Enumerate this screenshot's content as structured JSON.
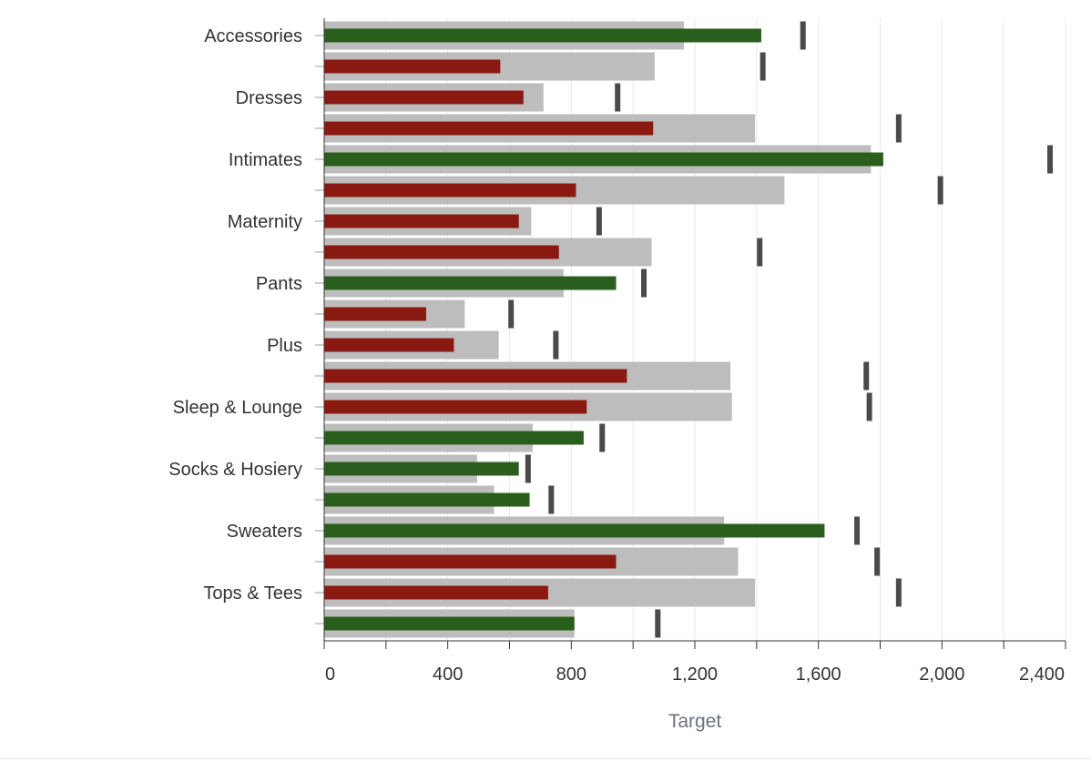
{
  "chart_data": {
    "type": "bar",
    "subtype": "bullet",
    "orientation": "horizontal",
    "title": "",
    "xlabel": "Target",
    "ylabel": "",
    "xlim": [
      0,
      2400
    ],
    "xticks": [
      0,
      400,
      800,
      1200,
      1600,
      2000,
      2400
    ],
    "xtick_labels": [
      "0",
      "400",
      "800",
      "1,200",
      "1,600",
      "2,000",
      "2,400"
    ],
    "category_labels": [
      "Accessories",
      "Dresses",
      "Intimates",
      "Maternity",
      "Pants",
      "Plus",
      "Sleep & Lounge",
      "Socks & Hosiery",
      "Sweaters",
      "Tops & Tees"
    ],
    "colors": {
      "background_bar": "#bdbdbd",
      "above_target": "#2a5e1c",
      "below_target": "#8a1a11",
      "marker": "#4a4a4a",
      "grid": "#e9e9e9",
      "axis": "#333333"
    },
    "rows": [
      {
        "label": "Accessories",
        "bg": 1165,
        "value": 1415,
        "status": "above",
        "marker": 1550
      },
      {
        "label": "",
        "bg": 1070,
        "value": 570,
        "status": "below",
        "marker": 1420
      },
      {
        "label": "Dresses",
        "bg": 710,
        "value": 645,
        "status": "below",
        "marker": 950
      },
      {
        "label": "",
        "bg": 1395,
        "value": 1065,
        "status": "below",
        "marker": 1860
      },
      {
        "label": "Intimates",
        "bg": 1770,
        "value": 1810,
        "status": "above",
        "marker": 2350
      },
      {
        "label": "",
        "bg": 1490,
        "value": 815,
        "status": "below",
        "marker": 1995
      },
      {
        "label": "Maternity",
        "bg": 670,
        "value": 630,
        "status": "below",
        "marker": 890
      },
      {
        "label": "",
        "bg": 1060,
        "value": 760,
        "status": "below",
        "marker": 1410
      },
      {
        "label": "Pants",
        "bg": 775,
        "value": 945,
        "status": "above",
        "marker": 1035
      },
      {
        "label": "",
        "bg": 455,
        "value": 330,
        "status": "below",
        "marker": 605
      },
      {
        "label": "Plus",
        "bg": 565,
        "value": 420,
        "status": "below",
        "marker": 750
      },
      {
        "label": "",
        "bg": 1315,
        "value": 980,
        "status": "below",
        "marker": 1755
      },
      {
        "label": "Sleep & Lounge",
        "bg": 1320,
        "value": 850,
        "status": "below",
        "marker": 1765
      },
      {
        "label": "",
        "bg": 675,
        "value": 840,
        "status": "above",
        "marker": 900
      },
      {
        "label": "Socks & Hosiery",
        "bg": 495,
        "value": 630,
        "status": "above",
        "marker": 660
      },
      {
        "label": "",
        "bg": 550,
        "value": 665,
        "status": "above",
        "marker": 735
      },
      {
        "label": "Sweaters",
        "bg": 1295,
        "value": 1620,
        "status": "above",
        "marker": 1725
      },
      {
        "label": "",
        "bg": 1340,
        "value": 945,
        "status": "below",
        "marker": 1790
      },
      {
        "label": "Tops & Tees",
        "bg": 1395,
        "value": 725,
        "status": "below",
        "marker": 1860
      },
      {
        "label": "",
        "bg": 810,
        "value": 810,
        "status": "above",
        "marker": 1080
      }
    ]
  }
}
